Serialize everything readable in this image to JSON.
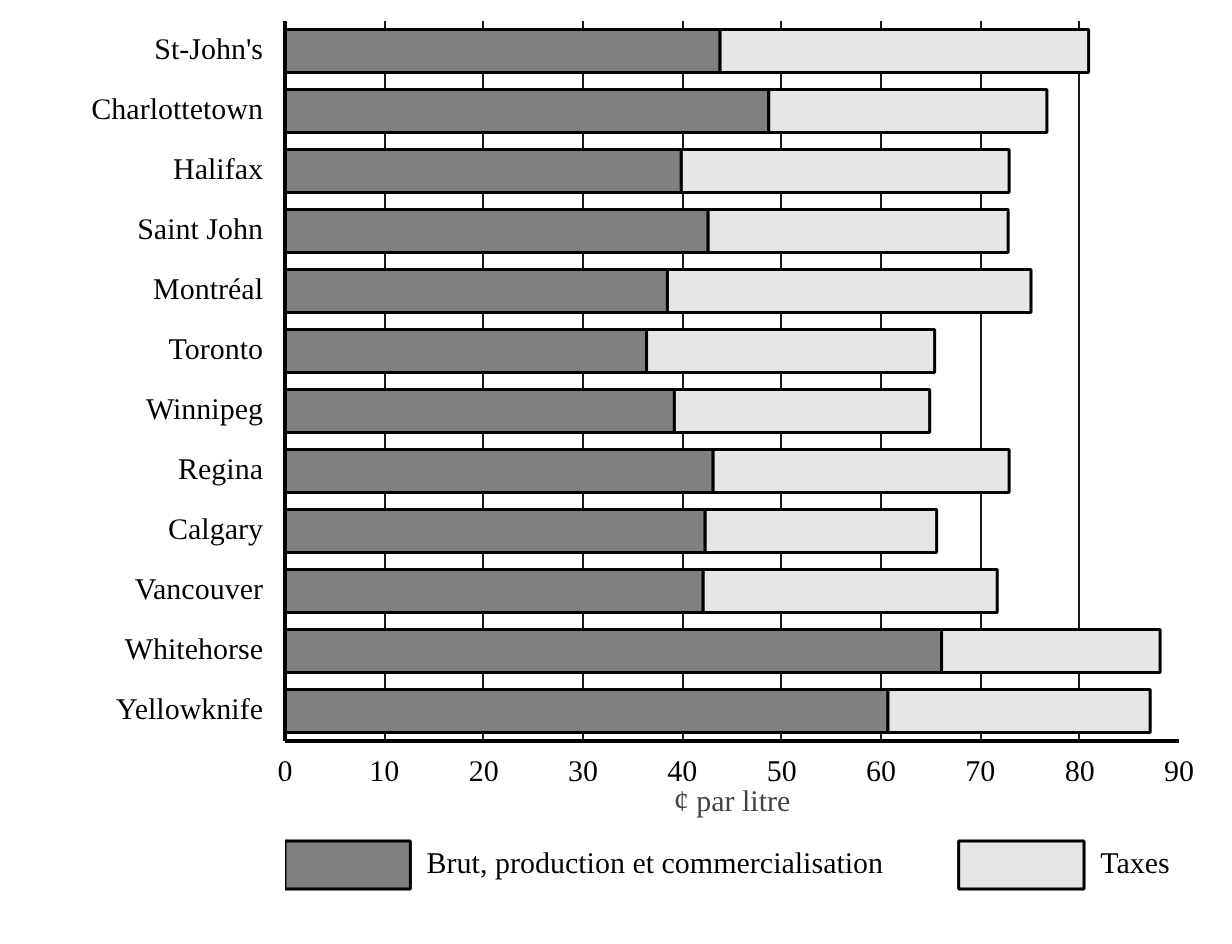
{
  "chart_data": {
    "type": "bar",
    "orientation": "horizontal",
    "stacked": true,
    "categories": [
      "St-John's",
      "Charlottetown",
      "Halifax",
      "Saint John",
      "Montréal",
      "Toronto",
      "Winnipeg",
      "Regina",
      "Calgary",
      "Vancouver",
      "Whitehorse",
      "Yellowknife"
    ],
    "series": [
      {
        "name": "Brut, production et commercialisation",
        "color": "#808080",
        "values": [
          43.8,
          48.7,
          39.9,
          42.6,
          38.5,
          36.4,
          39.2,
          43.1,
          42.3,
          42.1,
          66.1,
          60.7
        ]
      },
      {
        "name": "Taxes",
        "color": "#e6e6e6",
        "values": [
          37.1,
          28.0,
          33.0,
          30.2,
          36.6,
          29.0,
          25.7,
          29.8,
          23.3,
          29.6,
          22.0,
          26.4
        ]
      }
    ],
    "xlabel": "¢ par litre",
    "xlim": [
      0,
      90
    ],
    "xticks": [
      0,
      10,
      20,
      30,
      40,
      50,
      60,
      70,
      80,
      90
    ],
    "grid": "x",
    "legend": "bottom"
  }
}
